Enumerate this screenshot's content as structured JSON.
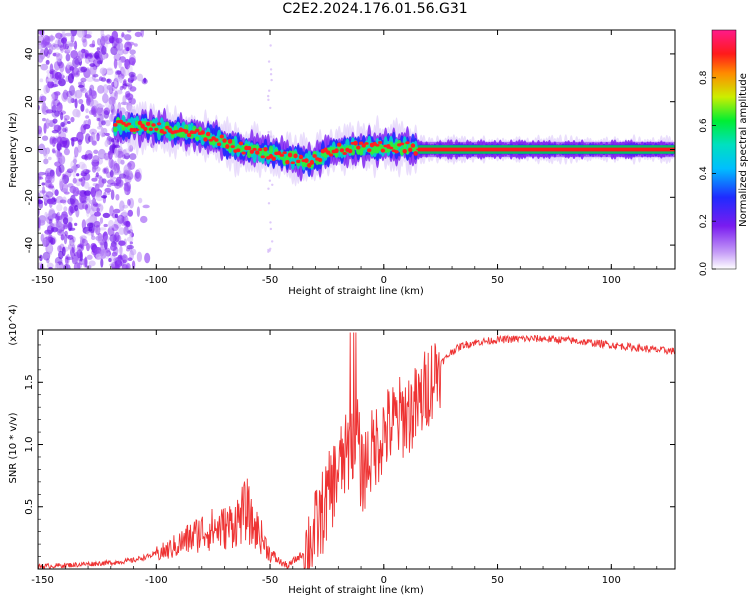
{
  "title": "C2E2.2024.176.01.56.G31",
  "colors": {
    "snr_line": "#ee3333",
    "spectrogram_ridge": "#ff0000",
    "scatter": "#7a1cf0"
  },
  "chart_data": [
    {
      "type": "heatmap",
      "title": "C2E2.2024.176.01.56.G31",
      "xlabel": "Height of straight line (km)",
      "ylabel": "Frequency (Hz)",
      "xlim": [
        -152,
        128
      ],
      "ylim": [
        -50,
        50
      ],
      "x_ticks": [
        -150,
        -100,
        -50,
        0,
        50,
        100
      ],
      "y_ticks": [
        -40,
        -20,
        0,
        20,
        40
      ],
      "colorbar": {
        "label": "Normalized spectral amplitude",
        "range": [
          0,
          1
        ],
        "ticks": [
          0.0,
          0.2,
          0.4,
          0.6,
          0.8
        ],
        "colormap": "rainbow (white-violet-blue-cyan-green-yellow-red-magenta)"
      },
      "ridge": {
        "x": [
          -115,
          -100,
          -85,
          -75,
          -65,
          -55,
          -48,
          -40,
          -33,
          -28,
          -20,
          -10,
          0,
          10,
          15,
          30,
          50,
          80,
          100,
          128
        ],
        "y": [
          10,
          9,
          7,
          5,
          1,
          -1,
          -2,
          -4,
          -5,
          -3,
          0,
          1,
          1,
          1,
          0,
          0,
          0,
          0,
          0,
          0
        ]
      },
      "grid": false
    },
    {
      "type": "line",
      "title": "",
      "xlabel": "Height of straight line (km)",
      "ylabel": "SNR (10 * v/v)",
      "y_multiplier": "(x10^4)",
      "xlim": [
        -152,
        128
      ],
      "ylim": [
        0.0,
        1.92
      ],
      "x_ticks": [
        -150,
        -100,
        -50,
        0,
        50,
        100
      ],
      "y_ticks": [
        0.5,
        1.0,
        1.5
      ],
      "series": [
        {
          "x": [
            -152,
            -140,
            -130,
            -120,
            -110,
            -100,
            -95,
            -90,
            -85,
            -80,
            -75,
            -70,
            -65,
            -60,
            -58,
            -55,
            -50,
            -45,
            -42,
            -40,
            -35,
            -30,
            -25,
            -20,
            -15,
            -12,
            -10,
            -5,
            0,
            5,
            10,
            15,
            20,
            25,
            30,
            35,
            40,
            50,
            60,
            70,
            80,
            90,
            100,
            110,
            120,
            128
          ],
          "y": [
            0.02,
            0.03,
            0.04,
            0.05,
            0.07,
            0.12,
            0.15,
            0.2,
            0.25,
            0.3,
            0.32,
            0.33,
            0.38,
            0.48,
            0.35,
            0.3,
            0.12,
            0.05,
            0.02,
            0.06,
            0.13,
            0.3,
            0.55,
            0.8,
            0.95,
            1.2,
            0.75,
            0.95,
            1.1,
            1.18,
            1.25,
            1.3,
            1.5,
            1.65,
            1.75,
            1.8,
            1.82,
            1.84,
            1.85,
            1.85,
            1.84,
            1.82,
            1.8,
            1.78,
            1.76,
            1.75
          ]
        }
      ],
      "grid": false
    }
  ]
}
